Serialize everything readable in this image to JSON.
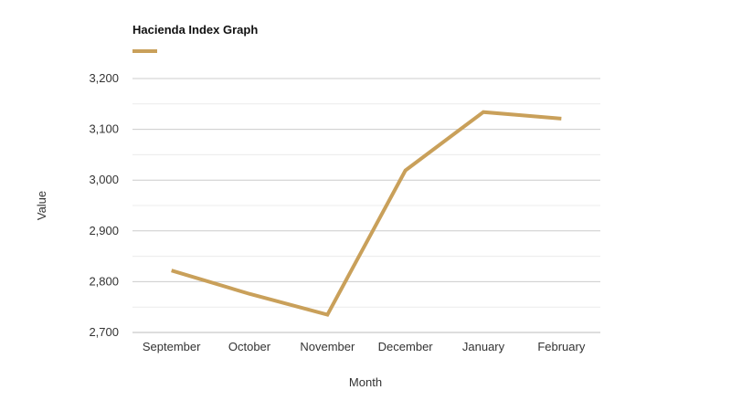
{
  "chart_data": {
    "type": "line",
    "title": "Hacienda Index Graph",
    "xlabel": "Month",
    "ylabel": "Value",
    "categories": [
      "September",
      "October",
      "November",
      "December",
      "January",
      "February"
    ],
    "series": [
      {
        "name": "",
        "color": "#c9a05a",
        "values": [
          2822,
          2776,
          2735,
          3019,
          3134,
          3121
        ]
      }
    ],
    "ylim": [
      2700,
      3200
    ],
    "yticks": [
      2700,
      2800,
      2900,
      3000,
      3100,
      3200
    ],
    "ytick_labels": [
      "2,700",
      "2,800",
      "2,900",
      "3,000",
      "3,100",
      "3,200"
    ],
    "grid": true,
    "legend": "top-left"
  }
}
